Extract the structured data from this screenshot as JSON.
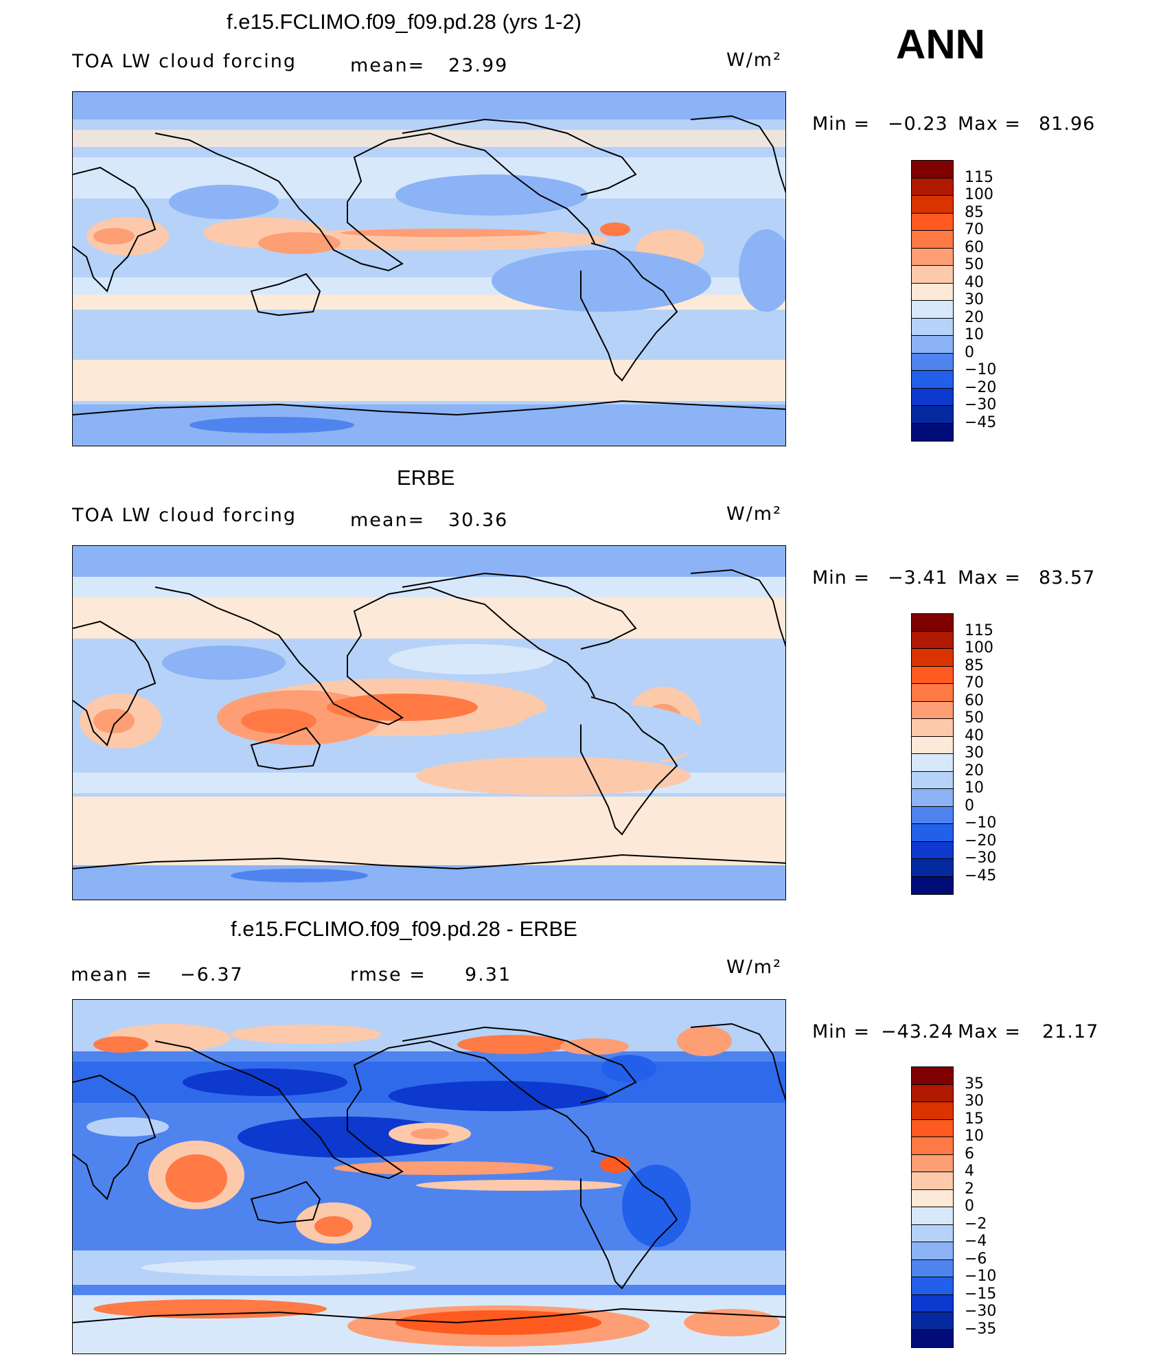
{
  "season": "ANN",
  "panels": [
    {
      "title": "f.e15.FCLIMO.f09_f09.pd.28 (yrs 1-2)",
      "left_label": "TOA LW cloud forcing",
      "stat1_label": "mean=",
      "stat1_value": "23.99",
      "stat2_label": "",
      "stat2_value": "",
      "units": "W/m²",
      "min_label": "Min =",
      "min_value": "−0.23",
      "max_label": "Max =",
      "max_value": "81.96",
      "colorbar": {
        "colors": [
          "#7f0000",
          "#b01a00",
          "#d93400",
          "#ff5a1f",
          "#ff7a45",
          "#fe9e75",
          "#fdc9ab",
          "#fde9d7",
          "#d8e8fb",
          "#b6d2f8",
          "#8cb3f5",
          "#4f84ef",
          "#2260ea",
          "#0d39cf",
          "#052a9f",
          "#000c78"
        ],
        "labels": [
          "115",
          "100",
          "85",
          "70",
          "60",
          "50",
          "40",
          "30",
          "20",
          "10",
          "0",
          "−10",
          "−20",
          "−30",
          "−45"
        ]
      }
    },
    {
      "title": "ERBE",
      "left_label": "TOA LW cloud forcing",
      "stat1_label": "mean=",
      "stat1_value": "30.36",
      "stat2_label": "",
      "stat2_value": "",
      "units": "W/m²",
      "min_label": "Min =",
      "min_value": "−3.41",
      "max_label": "Max =",
      "max_value": "83.57",
      "colorbar": {
        "colors": [
          "#7f0000",
          "#b01a00",
          "#d93400",
          "#ff5a1f",
          "#ff7a45",
          "#fe9e75",
          "#fdc9ab",
          "#fde9d7",
          "#d8e8fb",
          "#b6d2f8",
          "#8cb3f5",
          "#4f84ef",
          "#2260ea",
          "#0d39cf",
          "#052a9f",
          "#000c78"
        ],
        "labels": [
          "115",
          "100",
          "85",
          "70",
          "60",
          "50",
          "40",
          "30",
          "20",
          "10",
          "0",
          "−10",
          "−20",
          "−30",
          "−45"
        ]
      }
    },
    {
      "title": "f.e15.FCLIMO.f09_f09.pd.28 - ERBE",
      "left_label": "mean =",
      "stat1_label": "",
      "stat1_value": "−6.37",
      "stat2_label": "rmse =",
      "stat2_value": "9.31",
      "units": "W/m²",
      "min_label": "Min =",
      "min_value": "−43.24",
      "max_label": "Max =",
      "max_value": "21.17",
      "colorbar": {
        "colors": [
          "#7f0000",
          "#b01a00",
          "#d93400",
          "#ff5a1f",
          "#ff7a45",
          "#fe9e75",
          "#fdc9ab",
          "#fde9d7",
          "#d8e8fb",
          "#b6d2f8",
          "#8cb3f5",
          "#4f84ef",
          "#2260ea",
          "#0d39cf",
          "#052a9f",
          "#000c78"
        ],
        "labels": [
          "35",
          "30",
          "15",
          "10",
          "6",
          "4",
          "2",
          "0",
          "−2",
          "−4",
          "−6",
          "−10",
          "−15",
          "−30",
          "−35"
        ]
      }
    }
  ]
}
